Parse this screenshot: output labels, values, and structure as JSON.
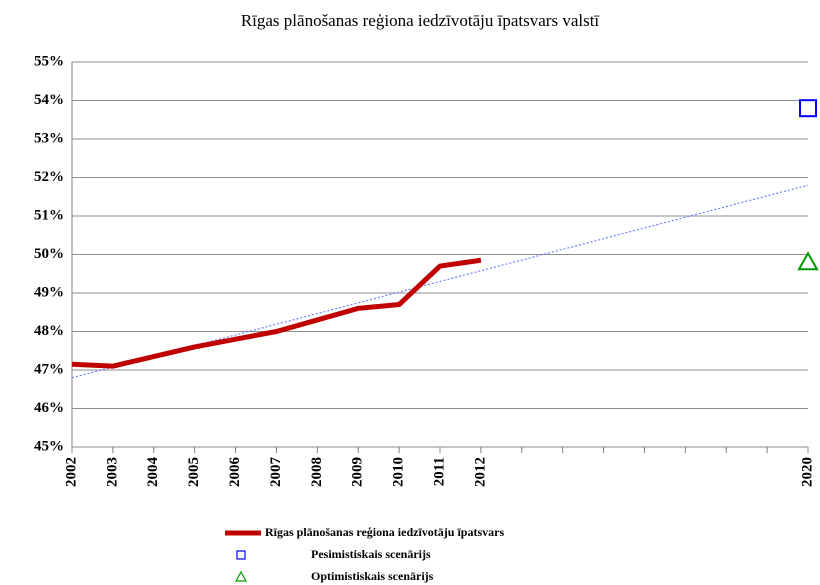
{
  "chart_data": {
    "type": "line",
    "title": "Rīgas plānošanas reģiona iedzīvotāju īpatsvars valstī",
    "categories": [
      "2002",
      "2003",
      "2004",
      "2005",
      "2006",
      "2007",
      "2008",
      "2009",
      "2010",
      "2011",
      "2012",
      null,
      null,
      null,
      null,
      null,
      null,
      null,
      "2020"
    ],
    "series": [
      {
        "name": "Rīgas plānošanas reģiona iedzīvotāju īpatsvars",
        "color": "#c00000",
        "style": "line",
        "values": [
          47.15,
          47.1,
          47.35,
          47.6,
          47.8,
          48.0,
          48.3,
          48.6,
          48.7,
          49.7,
          49.85,
          null,
          null,
          null,
          null,
          null,
          null,
          null,
          null
        ]
      },
      {
        "name": "Pesimistiskais scenārijs",
        "color": "#0000ff",
        "style": "square",
        "values": [
          null,
          null,
          null,
          null,
          null,
          null,
          null,
          null,
          null,
          null,
          null,
          null,
          null,
          null,
          null,
          null,
          null,
          null,
          53.8
        ]
      },
      {
        "name": "Optimistiskais scenārijs",
        "color": "#009900",
        "style": "triangle",
        "values": [
          null,
          null,
          null,
          null,
          null,
          null,
          null,
          null,
          null,
          null,
          null,
          null,
          null,
          null,
          null,
          null,
          null,
          null,
          49.8
        ]
      }
    ],
    "trendline": {
      "color": "#6f7fff",
      "values": [
        46.8,
        51.8
      ]
    },
    "ylim": [
      45,
      55
    ],
    "yticks": [
      {
        "value": 45,
        "label": "45%"
      },
      {
        "value": 46,
        "label": "46%"
      },
      {
        "value": 47,
        "label": "47%"
      },
      {
        "value": 48,
        "label": "48%"
      },
      {
        "value": 49,
        "label": "49%"
      },
      {
        "value": 50,
        "label": "50%"
      },
      {
        "value": 51,
        "label": "51%"
      },
      {
        "value": 52,
        "label": "52%"
      },
      {
        "value": 53,
        "label": "53%"
      },
      {
        "value": 54,
        "label": "54%"
      },
      {
        "value": 55,
        "label": "55%"
      }
    ],
    "grid": true
  }
}
